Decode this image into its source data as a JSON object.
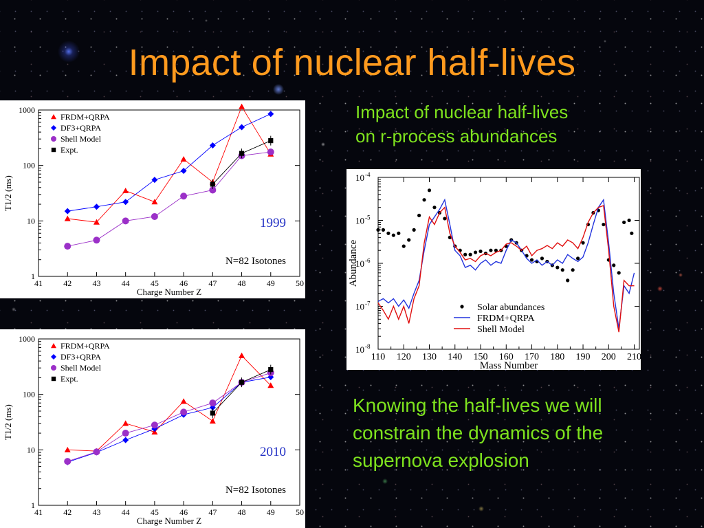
{
  "slide": {
    "title": "Impact of nuclear half-lives",
    "caption_top_line1": "Impact of nuclear half-lives",
    "caption_top_line2": "on r-process abundances",
    "caption_bottom_line1": "Knowing the half-lives we will",
    "caption_bottom_line2": "constrain the dynamics of the",
    "caption_bottom_line3": "supernova explosion"
  },
  "colors": {
    "title": "#ff9a1e",
    "caption": "#7ee21e",
    "frdm": "#ff0000",
    "df3": "#0000ff",
    "shell": "#9b30c8",
    "expt": "#000000",
    "label_year": "#1f2dc4"
  },
  "chart_data": [
    {
      "id": "halflife-1999",
      "type": "line",
      "year_label": "1999",
      "annotation": "N=82 Isotones",
      "xlabel": "Charge Number Z",
      "ylabel": "T1/2 (ms)",
      "xlim": [
        41,
        50
      ],
      "ylim": [
        1,
        1000
      ],
      "y_log": true,
      "x_ticks": [
        "41",
        "42",
        "43",
        "44",
        "45",
        "46",
        "47",
        "48",
        "49",
        "50"
      ],
      "y_ticks": [
        "1",
        "10",
        "100",
        "1000"
      ],
      "legend_position": "top-left",
      "series": [
        {
          "name": "FRDM+QRPA",
          "marker": "triangle",
          "color": "#ff0000",
          "x": [
            42,
            43,
            44,
            45,
            46,
            47,
            48,
            49
          ],
          "values": [
            11,
            9.5,
            35,
            22,
            130,
            50,
            1150,
            160
          ]
        },
        {
          "name": "DF3+QRPA",
          "marker": "diamond",
          "color": "#0000ff",
          "x": [
            42,
            43,
            44,
            45,
            46,
            47,
            48,
            49
          ],
          "values": [
            15,
            18,
            22,
            55,
            80,
            230,
            490,
            850
          ]
        },
        {
          "name": "Shell Model",
          "marker": "circle",
          "color": "#9b30c8",
          "x": [
            42,
            43,
            44,
            45,
            46,
            47,
            48,
            49
          ],
          "values": [
            3.5,
            4.5,
            10,
            12,
            28,
            36,
            150,
            175
          ]
        },
        {
          "name": "Expt.",
          "marker": "square",
          "color": "#000000",
          "x": [
            47,
            48,
            49
          ],
          "values": [
            46,
            165,
            280
          ]
        }
      ]
    },
    {
      "id": "halflife-2010",
      "type": "line",
      "year_label": "2010",
      "annotation": "N=82 Isotones",
      "xlabel": "Charge Number Z",
      "ylabel": "T1/2 (ms)",
      "xlim": [
        41,
        50
      ],
      "ylim": [
        1,
        1000
      ],
      "y_log": true,
      "x_ticks": [
        "41",
        "42",
        "43",
        "44",
        "45",
        "46",
        "47",
        "48",
        "49",
        "50"
      ],
      "y_ticks": [
        "1",
        "10",
        "100",
        "1000"
      ],
      "legend_position": "top-left",
      "series": [
        {
          "name": "FRDM+QRPA",
          "marker": "triangle",
          "color": "#ff0000",
          "x": [
            42,
            43,
            44,
            45,
            46,
            47,
            48,
            49
          ],
          "values": [
            10,
            9.5,
            30,
            21,
            75,
            33,
            500,
            145
          ]
        },
        {
          "name": "DF3+QRPA",
          "marker": "diamond",
          "color": "#0000ff",
          "x": [
            42,
            43,
            44,
            45,
            46,
            47,
            48,
            49
          ],
          "values": [
            6,
            9,
            15,
            24,
            43,
            58,
            165,
            205
          ]
        },
        {
          "name": "Shell Model",
          "marker": "circle",
          "color": "#9b30c8",
          "x": [
            42,
            43,
            44,
            45,
            46,
            47,
            48,
            49
          ],
          "values": [
            6.2,
            9.2,
            20,
            28,
            48,
            70,
            165,
            245
          ]
        },
        {
          "name": "Expt.",
          "marker": "square",
          "color": "#000000",
          "x": [
            47,
            48,
            49
          ],
          "values": [
            46,
            165,
            280
          ]
        }
      ]
    },
    {
      "id": "abundances",
      "type": "line",
      "xlabel": "Mass Number",
      "ylabel": "Abundance",
      "xlim": [
        110,
        212
      ],
      "ylim": [
        1e-08,
        0.0001
      ],
      "y_log": true,
      "x_ticks": [
        "110",
        "120",
        "130",
        "140",
        "150",
        "160",
        "170",
        "180",
        "190",
        "200",
        "210"
      ],
      "y_ticks": [
        {
          "base": "10",
          "exp": "-8"
        },
        {
          "base": "10",
          "exp": "-7"
        },
        {
          "base": "10",
          "exp": "-6"
        },
        {
          "base": "10",
          "exp": "-5"
        },
        {
          "base": "10",
          "exp": "-4"
        }
      ],
      "legend_position": "bottom-center",
      "series": [
        {
          "name": "Solar abundances",
          "style": "dots",
          "color": "#000000",
          "x": [
            110,
            112,
            114,
            116,
            118,
            120,
            122,
            124,
            126,
            128,
            130,
            132,
            134,
            136,
            138,
            140,
            142,
            144,
            146,
            148,
            150,
            152,
            154,
            156,
            158,
            160,
            162,
            164,
            166,
            168,
            170,
            172,
            174,
            176,
            178,
            180,
            182,
            184,
            186,
            188,
            190,
            192,
            194,
            196,
            198,
            200,
            202,
            204,
            206,
            208,
            209
          ],
          "values": [
            6e-06,
            6e-06,
            5e-06,
            4.5e-06,
            5e-06,
            2.5e-06,
            3.5e-06,
            6e-06,
            1.3e-05,
            3e-05,
            5e-05,
            2e-05,
            1.5e-05,
            1.1e-05,
            4e-06,
            2.5e-06,
            2e-06,
            1.6e-06,
            1.6e-06,
            1.8e-06,
            1.9e-06,
            1.7e-06,
            2e-06,
            2e-06,
            2e-06,
            2.5e-06,
            3.5e-06,
            3e-06,
            2e-06,
            1.5e-06,
            1.2e-06,
            1.1e-06,
            1.3e-06,
            1.1e-06,
            9e-07,
            8e-07,
            7e-07,
            4e-07,
            7e-07,
            1.3e-06,
            3e-06,
            8e-06,
            1.5e-05,
            1.7e-05,
            8e-06,
            1.2e-06,
            9e-07,
            6e-07,
            9e-06,
            1e-05,
            5e-06
          ]
        },
        {
          "name": "FRDM+QRPA",
          "style": "line",
          "color": "#2233dd",
          "x": [
            110,
            112,
            114,
            116,
            118,
            120,
            122,
            124,
            126,
            128,
            130,
            132,
            134,
            136,
            138,
            140,
            142,
            144,
            146,
            148,
            150,
            152,
            154,
            156,
            158,
            160,
            162,
            164,
            166,
            168,
            170,
            172,
            174,
            176,
            178,
            180,
            182,
            184,
            186,
            188,
            190,
            192,
            194,
            196,
            198,
            200,
            202,
            204,
            206,
            208,
            210
          ],
          "values": [
            1.3e-07,
            1.5e-07,
            1.2e-07,
            1.5e-07,
            1e-07,
            1.4e-07,
            9e-08,
            2e-07,
            4e-07,
            2e-06,
            8e-06,
            1.2e-05,
            1.8e-05,
            3e-05,
            8e-06,
            2e-06,
            1.5e-06,
            8e-07,
            9e-07,
            7e-07,
            1e-06,
            1.2e-06,
            9e-07,
            1.1e-06,
            1e-06,
            2e-06,
            3.5e-06,
            3e-06,
            2e-06,
            1.3e-06,
            1e-06,
            1.2e-06,
            9e-07,
            1.1e-06,
            9e-07,
            1.2e-06,
            1e-06,
            1.6e-06,
            1.3e-06,
            1.1e-06,
            1.4e-06,
            3e-06,
            8e-06,
            2e-05,
            3e-05,
            3e-06,
            2e-07,
            3e-08,
            3e-07,
            2e-07,
            6e-07
          ]
        },
        {
          "name": "Shell Model",
          "style": "line",
          "color": "#e01010",
          "x": [
            110,
            112,
            114,
            116,
            118,
            120,
            122,
            124,
            126,
            128,
            130,
            132,
            134,
            136,
            138,
            140,
            142,
            144,
            146,
            148,
            150,
            152,
            154,
            156,
            158,
            160,
            162,
            164,
            166,
            168,
            170,
            172,
            174,
            176,
            178,
            180,
            182,
            184,
            186,
            188,
            190,
            192,
            194,
            196,
            198,
            200,
            202,
            204,
            206,
            208,
            210
          ],
          "values": [
            1.2e-07,
            8e-08,
            5e-08,
            1e-07,
            5e-08,
            1e-07,
            4e-08,
            1.5e-07,
            3e-07,
            3e-06,
            1.2e-05,
            8e-06,
            1.5e-05,
            2e-05,
            5e-06,
            2.5e-06,
            1.8e-06,
            1.2e-06,
            1.3e-06,
            1.1e-06,
            1.5e-06,
            1.7e-06,
            1.5e-06,
            1.8e-06,
            2e-06,
            2.8e-06,
            3e-06,
            2.5e-06,
            2e-06,
            2.5e-06,
            1.5e-06,
            2e-06,
            2.2e-06,
            2.6e-06,
            2.2e-06,
            3e-06,
            2.5e-06,
            3.5e-06,
            3e-06,
            2.2e-06,
            4e-06,
            9e-06,
            1.5e-05,
            2e-05,
            2.2e-05,
            2e-06,
            1e-07,
            2.5e-08,
            4e-07,
            3e-07,
            3e-07
          ]
        }
      ]
    }
  ]
}
